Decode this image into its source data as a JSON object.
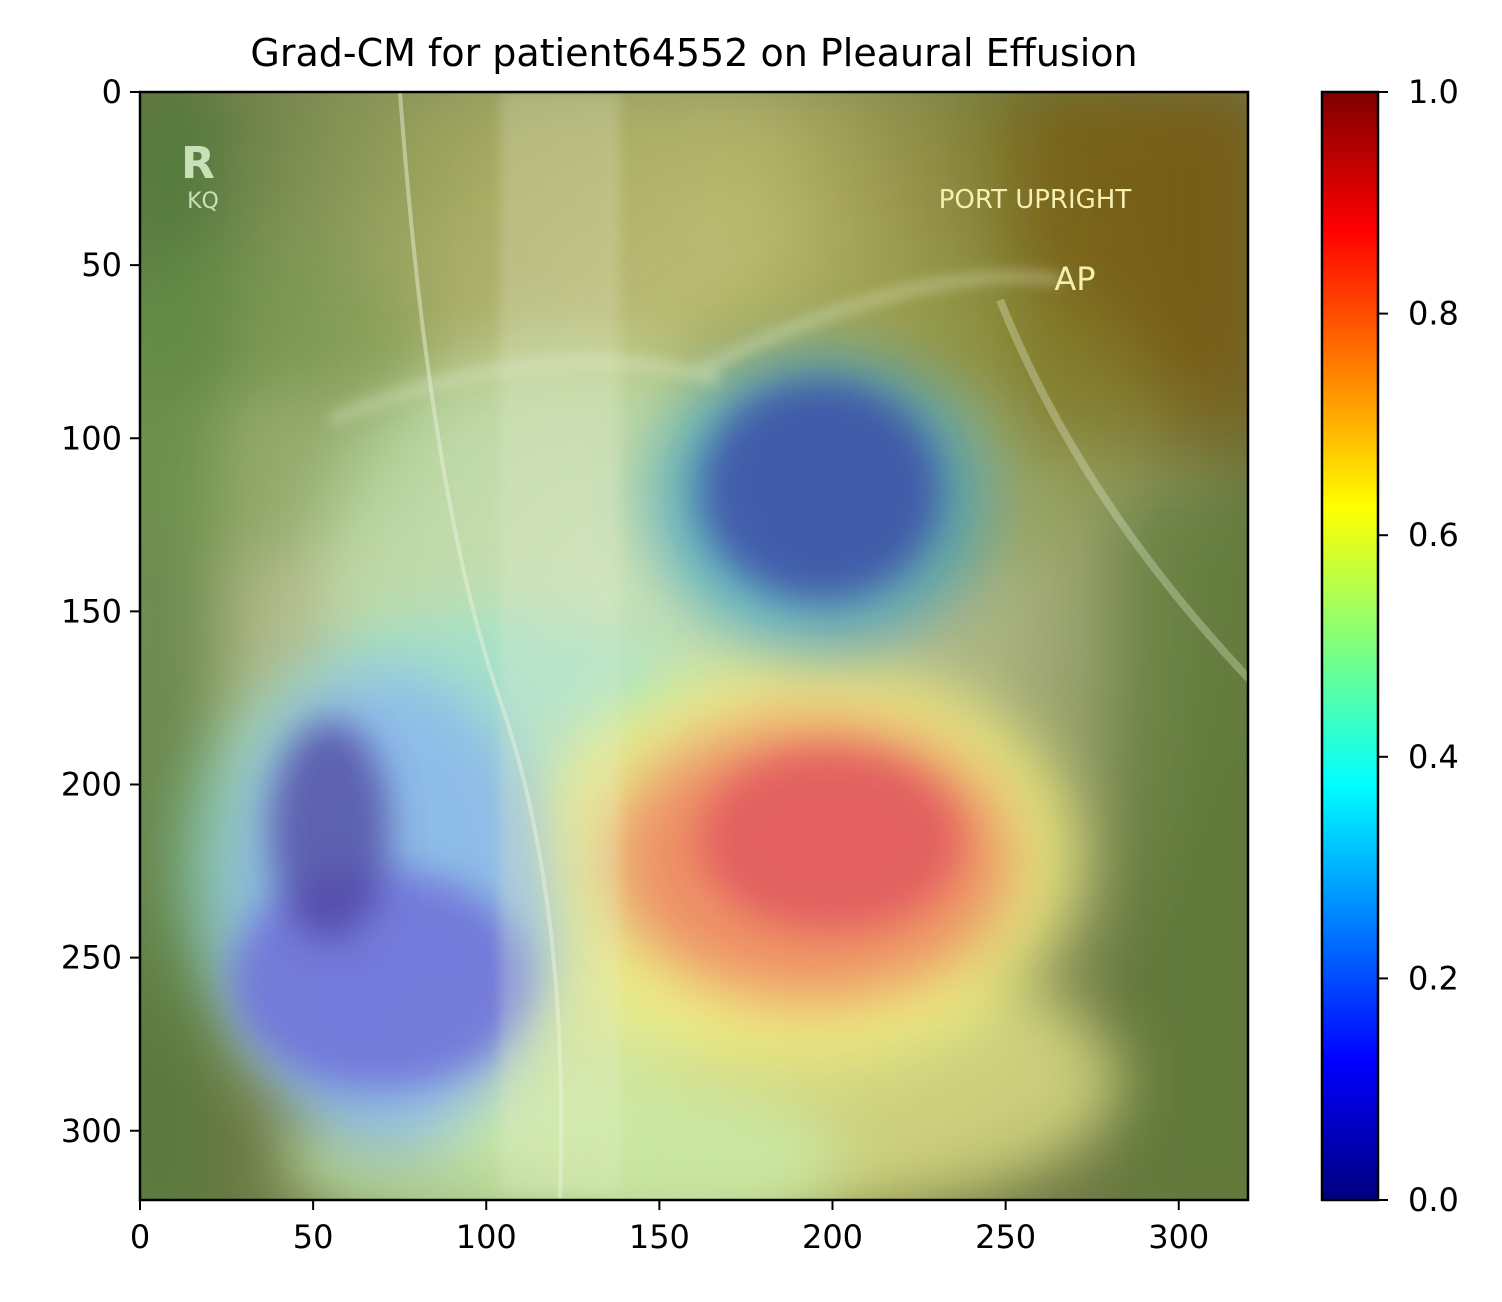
{
  "chart_data": {
    "type": "heatmap",
    "title": "Grad-CM for patient64552 on Pleaural Effusion",
    "image_size": [
      320,
      320
    ],
    "x_ticks": [
      0,
      50,
      100,
      150,
      200,
      250,
      300
    ],
    "y_ticks": [
      0,
      50,
      100,
      150,
      200,
      250,
      300
    ],
    "xlim": [
      0,
      320
    ],
    "ylim": [
      320,
      0
    ],
    "colormap": "jet",
    "overlay_alpha": 0.5,
    "colorbar": {
      "range": [
        0.0,
        1.0
      ],
      "ticks": [
        "0.0",
        "0.2",
        "0.4",
        "0.6",
        "0.8",
        "1.0"
      ]
    },
    "image_annotations": {
      "marker_letter": "R",
      "marker_sub": "KQ",
      "port_label": "PORT UPRIGHT",
      "view_label": "AP"
    },
    "heatmap_blobs": [
      {
        "region": "left lower lung",
        "x": 60,
        "y": 255,
        "value": 0.08
      },
      {
        "region": "left upper-mid lung",
        "x": 50,
        "y": 210,
        "value": 0.1
      },
      {
        "region": "right upper lung",
        "x": 195,
        "y": 125,
        "value": 0.1
      },
      {
        "region": "lower central",
        "x": 205,
        "y": 215,
        "value": 0.92
      },
      {
        "region": "lower central",
        "x": 180,
        "y": 245,
        "value": 0.88
      },
      {
        "region": "top right corner",
        "x": 310,
        "y": 10,
        "value": 0.76
      },
      {
        "region": "top left corner",
        "x": 10,
        "y": 10,
        "value": 0.45
      }
    ],
    "colors": {
      "jet": [
        "#00007f",
        "#0000ff",
        "#007fff",
        "#00ffff",
        "#7fff7f",
        "#ffff00",
        "#ff7f00",
        "#ff0000",
        "#7f0000"
      ]
    }
  }
}
